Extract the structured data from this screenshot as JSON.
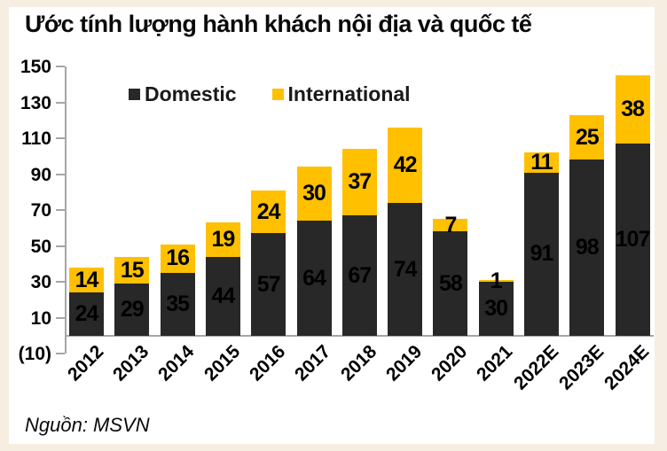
{
  "title": "Ước tính lượng hành khách nội địa và quốc tế",
  "source": "Nguồn: MSVN",
  "colors": {
    "background_frame": "#F6EEE1",
    "card": "#FFFFFF",
    "axis": "#A6A6A6",
    "domestic": "#282828",
    "international": "#FFC000",
    "label_text": "#000000"
  },
  "chart_data": {
    "type": "bar",
    "stacked": true,
    "title": "Ước tính lượng hành khách nội địa và quốc tế",
    "categories": [
      "2012",
      "2013",
      "2014",
      "2015",
      "2016",
      "2017",
      "2018",
      "2019",
      "2020",
      "2021",
      "2022E",
      "2023E",
      "2024E"
    ],
    "series": [
      {
        "name": "Domestic",
        "color": "#282828",
        "values": [
          24,
          29,
          35,
          44,
          57,
          64,
          67,
          74,
          58,
          30,
          91,
          98,
          107
        ]
      },
      {
        "name": "International",
        "color": "#FFC000",
        "values": [
          14,
          15,
          16,
          19,
          24,
          30,
          37,
          42,
          7,
          1,
          11,
          25,
          38
        ]
      }
    ],
    "xlabel": "",
    "ylabel": "",
    "ylim": [
      -10,
      150
    ],
    "yticks": [
      150,
      130,
      110,
      90,
      70,
      50,
      30,
      10,
      -10
    ],
    "ytick_labels": [
      "150",
      "130",
      "110",
      "90",
      "70",
      "50",
      "30",
      "10",
      "(10)"
    ],
    "grid": false,
    "legend_position": "top-center-inside",
    "data_labels": true
  }
}
